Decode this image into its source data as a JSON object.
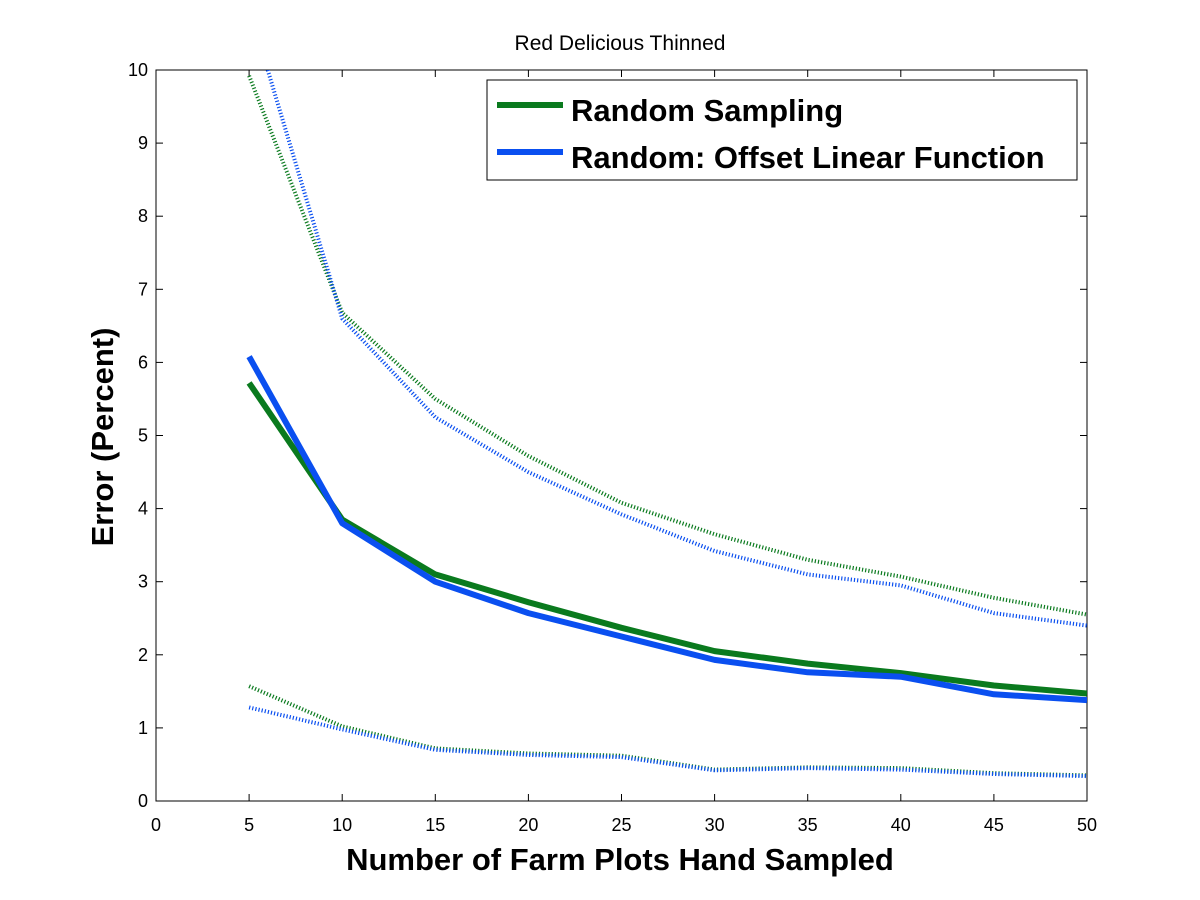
{
  "chart_data": {
    "type": "line",
    "title": "Red Delicious Thinned",
    "xlabel": "Number of Farm Plots Hand Sampled",
    "ylabel": "Error (Percent)",
    "xlim": [
      0,
      50
    ],
    "ylim": [
      0,
      10
    ],
    "xticks": [
      0,
      5,
      10,
      15,
      20,
      25,
      30,
      35,
      40,
      45,
      50
    ],
    "yticks": [
      0,
      1,
      2,
      3,
      4,
      5,
      6,
      7,
      8,
      9,
      10
    ],
    "grid": false,
    "legend_position": "top-right",
    "x": [
      5,
      10,
      15,
      20,
      25,
      30,
      35,
      40,
      45,
      50
    ],
    "series": [
      {
        "name": "Random Sampling",
        "color": "#0a7a1e",
        "style": "solid",
        "values": [
          5.72,
          3.85,
          3.1,
          2.72,
          2.37,
          2.05,
          1.88,
          1.75,
          1.58,
          1.47
        ]
      },
      {
        "name": "Random: Offset Linear Function",
        "color": "#0a4ff0",
        "style": "solid",
        "values": [
          6.08,
          3.8,
          3.0,
          2.57,
          2.25,
          1.93,
          1.76,
          1.7,
          1.46,
          1.38
        ]
      },
      {
        "color": "#0a7a1e",
        "style": "dotted",
        "x": [
          5,
          10,
          15,
          20,
          25,
          30,
          35,
          40,
          45,
          50
        ],
        "values": [
          9.92,
          6.68,
          5.5,
          4.72,
          4.08,
          3.65,
          3.3,
          3.07,
          2.78,
          2.55
        ]
      },
      {
        "color": "#0a4ff0",
        "style": "dotted",
        "x": [
          6,
          10,
          15,
          20,
          25,
          30,
          35,
          40,
          45,
          50
        ],
        "values": [
          10.0,
          6.6,
          5.25,
          4.5,
          3.92,
          3.42,
          3.1,
          2.95,
          2.57,
          2.4
        ]
      },
      {
        "color": "#0a7a1e",
        "style": "dotted",
        "x": [
          5,
          10,
          15,
          20,
          25,
          30,
          35,
          40,
          45,
          50
        ],
        "values": [
          1.57,
          1.02,
          0.72,
          0.65,
          0.62,
          0.43,
          0.46,
          0.45,
          0.38,
          0.35
        ]
      },
      {
        "color": "#0a4ff0",
        "style": "dotted",
        "x": [
          5,
          10,
          15,
          20,
          25,
          30,
          35,
          40,
          45,
          50
        ],
        "values": [
          1.28,
          0.98,
          0.7,
          0.63,
          0.6,
          0.42,
          0.45,
          0.43,
          0.37,
          0.34
        ]
      }
    ]
  }
}
